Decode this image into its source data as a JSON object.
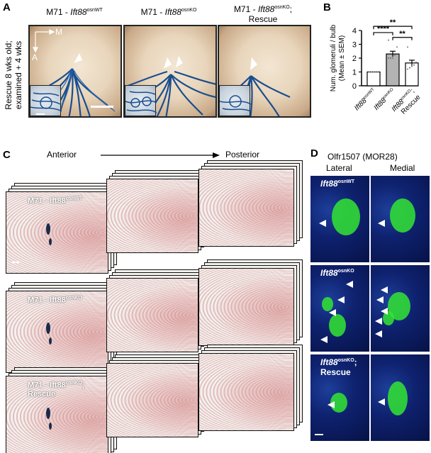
{
  "panel_a": {
    "letter": "A",
    "side_label_1": "Rescue 8 wks old;",
    "side_label_2": "examined + 4 wks",
    "titles": [
      {
        "main": "M71 - ",
        "gene": "Ift88",
        "sup": "osnWT"
      },
      {
        "main": "M71 - ",
        "gene": "Ift88",
        "sup": "osnKO"
      },
      {
        "main": "M71 - ",
        "gene": "Ift88",
        "sup": "osnKO",
        "suffix": ";",
        "line2": "Rescue"
      }
    ],
    "axis_m": "M",
    "axis_a": "A"
  },
  "panel_b": {
    "letter": "B",
    "sig_labels": [
      "**",
      "****",
      "**"
    ]
  },
  "chart_data": {
    "type": "bar",
    "ylabel": "Num. glomeruli / bulb (Mean ± SEM)",
    "ylim": [
      0,
      4
    ],
    "yticks": [
      0,
      1,
      2,
      3,
      4
    ],
    "categories": [
      {
        "gene": "Ift88",
        "sup": "osnWT",
        "line2": ""
      },
      {
        "gene": "Ift88",
        "sup": "osnKO",
        "line2": ""
      },
      {
        "gene": "Ift88",
        "sup": "osnKO",
        "suffix": ";",
        "line2": "Rescue"
      }
    ],
    "values": [
      1.0,
      2.3,
      1.65
    ],
    "errors": [
      0.0,
      0.2,
      0.2
    ],
    "bar_colors": [
      "#ffffff",
      "#b3b3b3",
      "#ffffff"
    ]
  },
  "panel_c": {
    "letter": "C",
    "anterior": "Anterior",
    "posterior": "Posterior",
    "rows": [
      {
        "label": "M71 - Ift88",
        "sup": "osnWT",
        "line2": ""
      },
      {
        "label": "M71 - Ift88",
        "sup": "osnKO",
        "line2": ""
      },
      {
        "label": "M71 - Ift88",
        "sup": "osnKO",
        "suffix": ";",
        "line2": "Rescue"
      }
    ]
  },
  "panel_d": {
    "letter": "D",
    "title": "Olfr1507 (MOR28)",
    "col_lateral": "Lateral",
    "col_medial": "Medial",
    "rows": [
      {
        "gene": "Ift88",
        "sup": "osnWT",
        "line2": ""
      },
      {
        "gene": "Ift88",
        "sup": "osnKO",
        "line2": ""
      },
      {
        "gene": "Ift88",
        "sup": "osnKO",
        "suffix": ";",
        "line2": "Rescue"
      }
    ]
  },
  "colors": {
    "xgal_blue": "#1a4e8f",
    "stain_red": "#c8606a",
    "fluo_green": "#33e533",
    "fluo_blue": "#0f2270"
  }
}
